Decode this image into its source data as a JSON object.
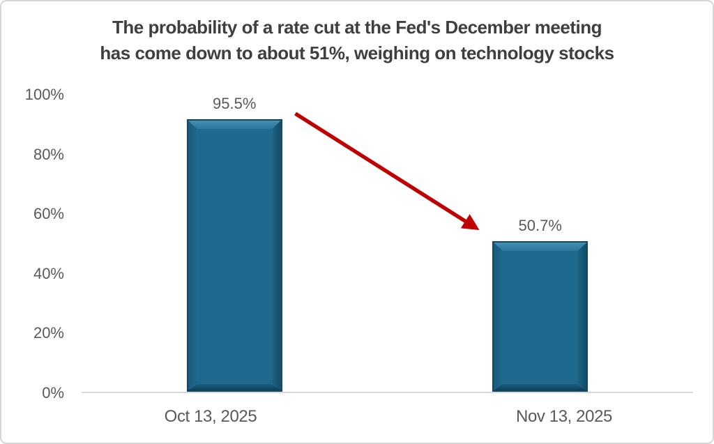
{
  "chart_data": {
    "type": "bar",
    "title": "The probability of a rate cut at the Fed's December meeting has come down to about 51%, weighing on technology stocks",
    "title_lines": [
      "The probability of a rate cut at the Fed's December meeting",
      "has come down to about 51%, weighing on technology stocks"
    ],
    "categories": [
      "Oct 13, 2025",
      "Nov 13, 2025"
    ],
    "values": [
      95.5,
      50.7
    ],
    "labels": [
      "95.5%",
      "50.7%"
    ],
    "xlabel": "",
    "ylabel": "",
    "ylim": [
      0,
      100
    ],
    "yticks": [
      "100%",
      "80%",
      "60%",
      "40%",
      "20%",
      "0%"
    ],
    "grid": "off",
    "legend": "none",
    "bar_color": "#1f698e",
    "bar_edge_color": "#16465f",
    "annotation": {
      "type": "arrow",
      "meaning": "decline from 95.5% to 50.7%",
      "color": "#c00000"
    },
    "axis_line_color": "#d9d9d9",
    "title_color": "#3f3f3f",
    "label_color": "#595959"
  }
}
